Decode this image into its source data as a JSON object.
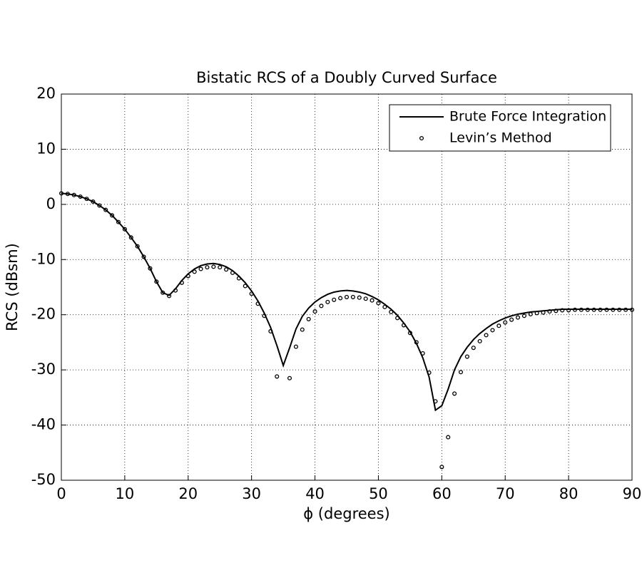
{
  "chart_data": {
    "type": "line",
    "title": "Bistatic RCS of a Doubly Curved Surface",
    "xlabel": "ϕ (degrees)",
    "ylabel": "RCS (dBsm)",
    "x": [
      0,
      1,
      2,
      3,
      4,
      5,
      6,
      7,
      8,
      9,
      10,
      11,
      12,
      13,
      14,
      15,
      16,
      17,
      18,
      19,
      20,
      21,
      22,
      23,
      24,
      25,
      26,
      27,
      28,
      29,
      30,
      31,
      32,
      33,
      34,
      35,
      36,
      37,
      38,
      39,
      40,
      41,
      42,
      43,
      44,
      45,
      46,
      47,
      48,
      49,
      50,
      51,
      52,
      53,
      54,
      55,
      56,
      57,
      58,
      59,
      60,
      61,
      62,
      63,
      64,
      65,
      66,
      67,
      68,
      69,
      70,
      71,
      72,
      73,
      74,
      75,
      76,
      77,
      78,
      79,
      80,
      81,
      82,
      83,
      84,
      85,
      86,
      87,
      88,
      89,
      90
    ],
    "series": [
      {
        "name": "Brute Force Integration",
        "color": "#000000",
        "marker": "none",
        "values": [
          2,
          1.9,
          1.7,
          1.4,
          1,
          0.5,
          -0.2,
          -1,
          -2,
          -3.2,
          -4.5,
          -6,
          -7.6,
          -9.5,
          -11.6,
          -14,
          -16,
          -16.5,
          -15.3,
          -13.8,
          -12.6,
          -11.7,
          -11.1,
          -10.8,
          -10.7,
          -10.9,
          -11.3,
          -12,
          -13,
          -14.2,
          -15.7,
          -17.5,
          -19.7,
          -22.3,
          -25.6,
          -29.2,
          -26,
          -22.6,
          -20.3,
          -18.8,
          -17.7,
          -16.9,
          -16.3,
          -15.9,
          -15.7,
          -15.6,
          -15.7,
          -15.9,
          -16.2,
          -16.7,
          -17.3,
          -18.1,
          -19,
          -20.1,
          -21.5,
          -23.1,
          -25.2,
          -27.8,
          -31.3,
          -37.3,
          -36.5,
          -33.5,
          -30,
          -27.6,
          -25.9,
          -24.5,
          -23.4,
          -22.5,
          -21.7,
          -21.1,
          -20.6,
          -20.2,
          -19.9,
          -19.7,
          -19.5,
          -19.4,
          -19.3,
          -19.2,
          -19.1,
          -19,
          -19,
          -19,
          -19,
          -19,
          -19,
          -19,
          -19,
          -19,
          -19,
          -19,
          -19
        ]
      },
      {
        "name": "Levin’s Method",
        "color": "#000000",
        "marker": "circle",
        "values": [
          2,
          1.9,
          1.7,
          1.4,
          1,
          0.5,
          -0.2,
          -1,
          -2,
          -3.2,
          -4.5,
          -6,
          -7.6,
          -9.5,
          -11.6,
          -14,
          -16,
          -16.6,
          -15.6,
          -14.2,
          -13,
          -12.2,
          -11.7,
          -11.4,
          -11.3,
          -11.4,
          -11.8,
          -12.4,
          -13.4,
          -14.8,
          -16.2,
          -18,
          -20.2,
          -23,
          -31.2,
          null,
          -31.5,
          -25.8,
          -22.7,
          -20.8,
          -19.4,
          -18.4,
          -17.7,
          -17.3,
          -17,
          -16.8,
          -16.8,
          -16.9,
          -17.1,
          -17.4,
          -17.9,
          -18.6,
          -19.5,
          -20.6,
          -21.9,
          -23.3,
          -25,
          -27,
          -30.5,
          -35.7,
          -47.6,
          -42.2,
          -34.3,
          -30.4,
          -27.6,
          -26,
          -24.8,
          -23.7,
          -22.8,
          -22,
          -21.4,
          -20.9,
          -20.5,
          -20.2,
          -19.9,
          -19.7,
          -19.6,
          -19.4,
          -19.3,
          -19.2,
          -19.2,
          -19.1,
          -19.1,
          -19.1,
          -19.1,
          -19.1,
          -19.1,
          -19.1,
          -19.1,
          -19.1,
          -19.1
        ]
      }
    ],
    "xlim": [
      0,
      90
    ],
    "xticks": [
      0,
      10,
      20,
      30,
      40,
      50,
      60,
      70,
      80,
      90
    ],
    "ylim": [
      -50,
      20
    ],
    "yticks": [
      -50,
      -40,
      -30,
      -20,
      -10,
      0,
      10,
      20
    ],
    "grid": true,
    "legend": "upper right"
  }
}
